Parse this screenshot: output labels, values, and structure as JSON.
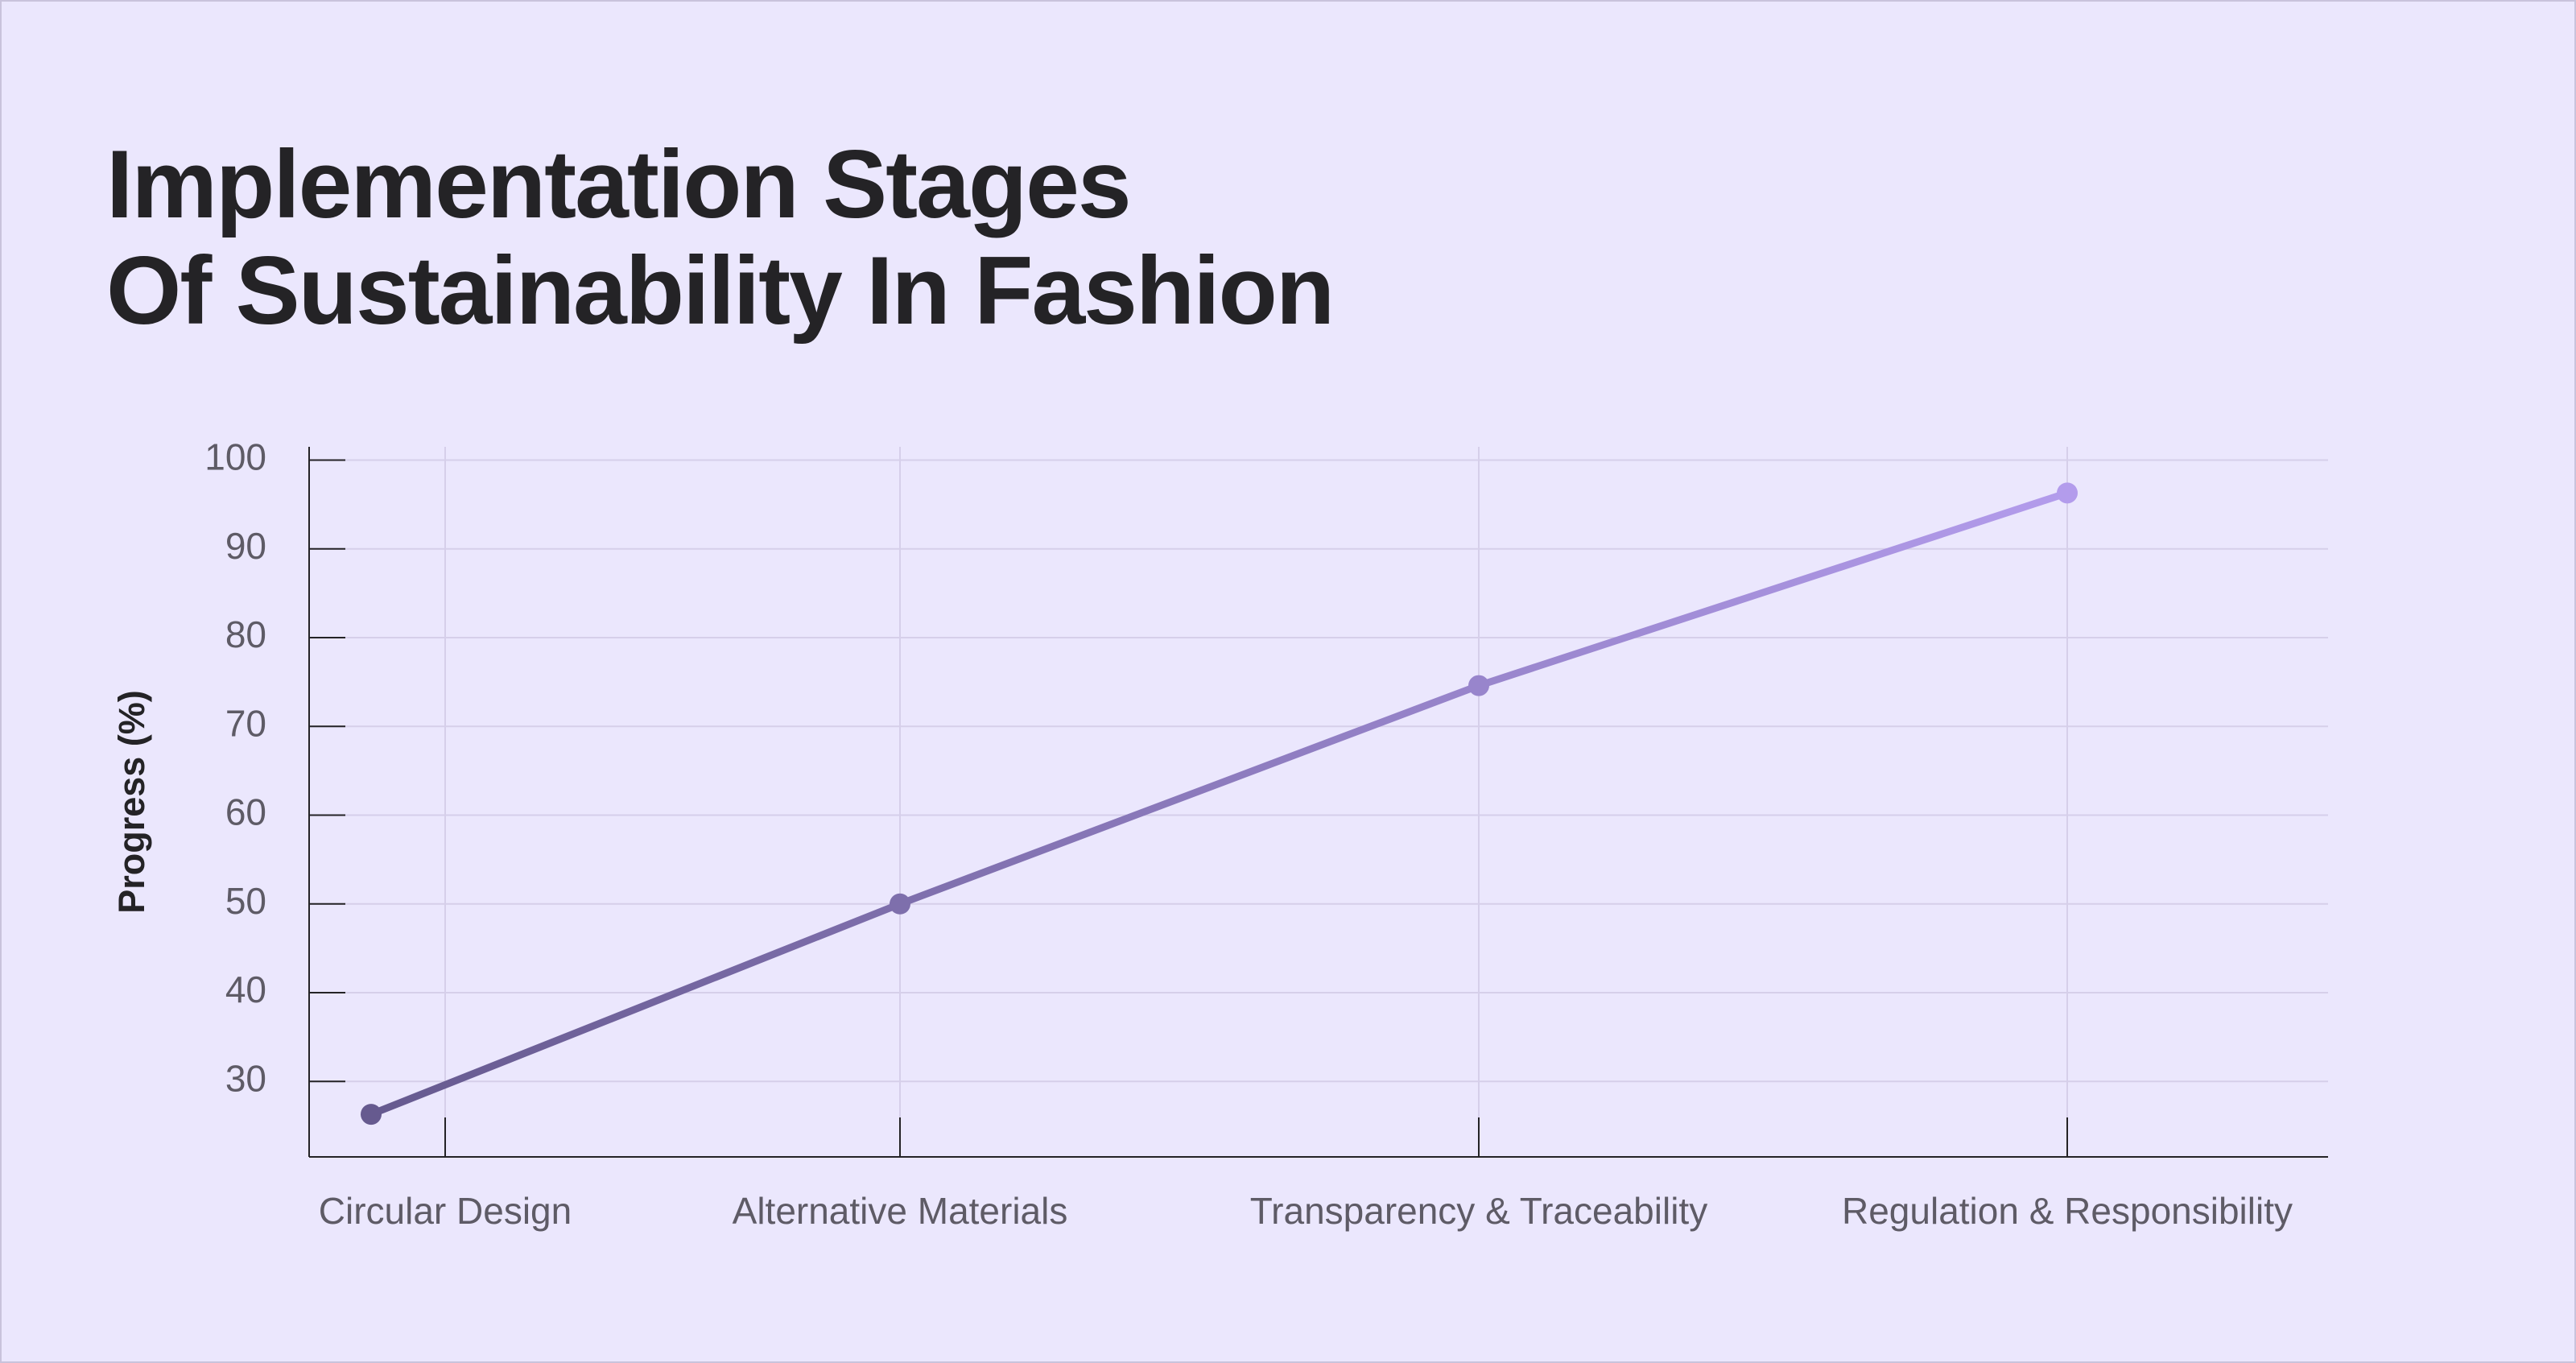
{
  "chart_data": {
    "type": "line",
    "title": [
      "Implementation Stages",
      "Of Sustainability In Fashion"
    ],
    "y_label": "Progress (%)",
    "categories": [
      "Circular Design",
      "Alternative Materials",
      "Transparency & Traceability",
      "Regulation & Responsibility"
    ],
    "series": [
      {
        "name": "Progress",
        "color": [
          "#665a8f",
          "#b39cec"
        ],
        "values": [
          26.3,
          50,
          74.6,
          96.3
        ]
      }
    ],
    "ylim": [
      21.5,
      101.5
    ],
    "yticks": [
      30,
      40,
      50,
      60,
      70,
      80,
      90,
      100
    ],
    "grid": true
  }
}
